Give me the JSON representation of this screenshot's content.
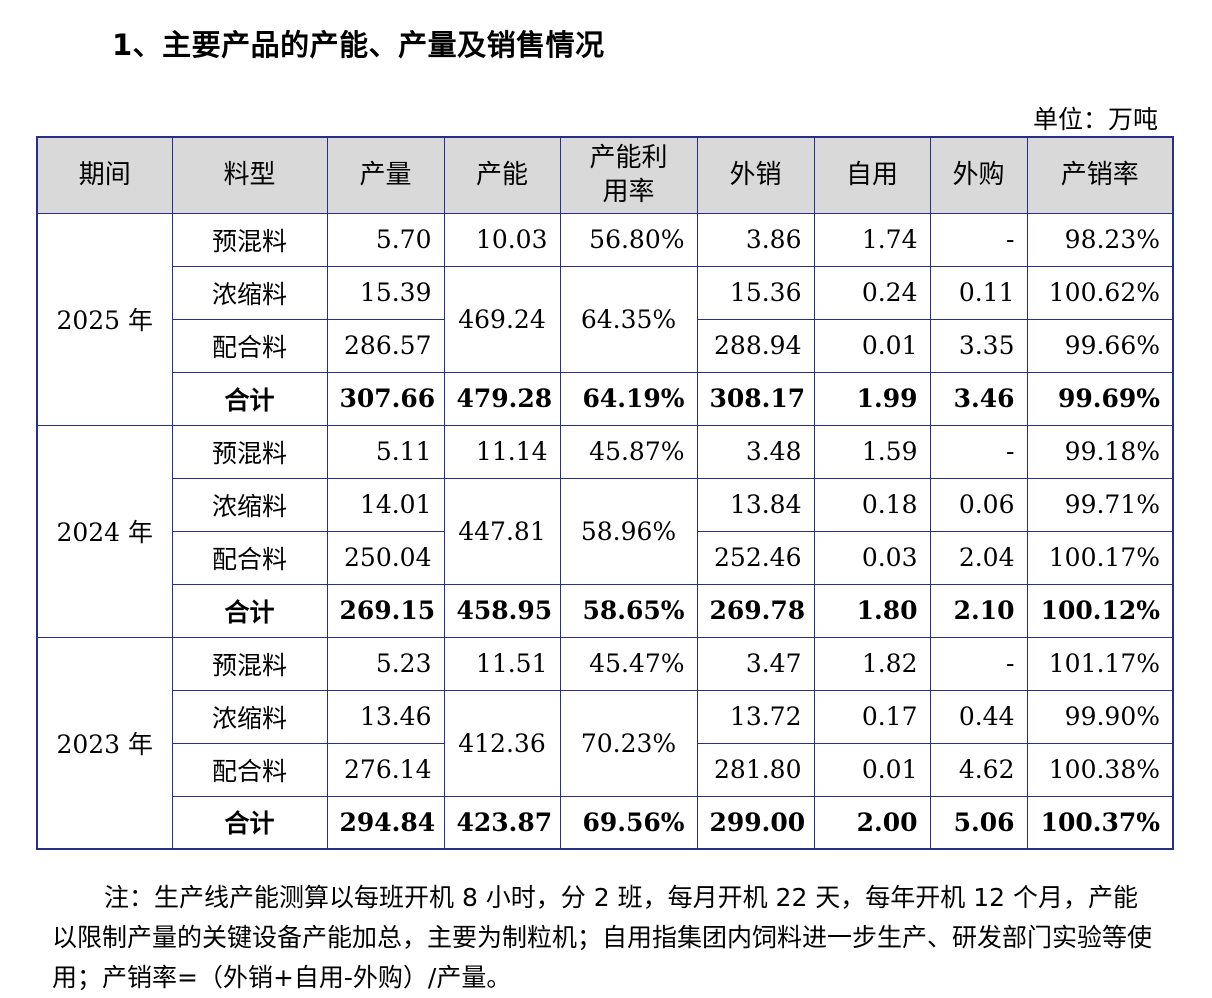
{
  "title": "1、主要产品的产能、产量及销售情况",
  "unit": "单位：万吨",
  "headers": [
    "期间",
    "料型",
    "产量",
    "产能",
    "产能利用率",
    "外销",
    "自用",
    "外购",
    "产销率"
  ],
  "groups": [
    {
      "year": "2025 年",
      "rows": [
        {
          "type": "预混料",
          "output": "5.70",
          "capacity": "10.03",
          "util": "56.80%",
          "sales": "3.86",
          "self": "1.74",
          "purchase": "-",
          "rate": "98.23%"
        },
        {
          "type": "浓缩料",
          "output": "15.39",
          "capacity": "469.24",
          "util": "64.35%",
          "sales": "15.36",
          "self": "0.24",
          "purchase": "0.11",
          "rate": "100.62%"
        },
        {
          "type": "配合料",
          "output": "286.57",
          "sales": "288.94",
          "self": "0.01",
          "purchase": "3.35",
          "rate": "99.66%"
        }
      ],
      "total": {
        "type": "合计",
        "output": "307.66",
        "capacity": "479.28",
        "util": "64.19%",
        "sales": "308.17",
        "self": "1.99",
        "purchase": "3.46",
        "rate": "99.69%"
      }
    },
    {
      "year": "2024 年",
      "rows": [
        {
          "type": "预混料",
          "output": "5.11",
          "capacity": "11.14",
          "util": "45.87%",
          "sales": "3.48",
          "self": "1.59",
          "purchase": "-",
          "rate": "99.18%"
        },
        {
          "type": "浓缩料",
          "output": "14.01",
          "capacity": "447.81",
          "util": "58.96%",
          "sales": "13.84",
          "self": "0.18",
          "purchase": "0.06",
          "rate": "99.71%"
        },
        {
          "type": "配合料",
          "output": "250.04",
          "sales": "252.46",
          "self": "0.03",
          "purchase": "2.04",
          "rate": "100.17%"
        }
      ],
      "total": {
        "type": "合计",
        "output": "269.15",
        "capacity": "458.95",
        "util": "58.65%",
        "sales": "269.78",
        "self": "1.80",
        "purchase": "2.10",
        "rate": "100.12%"
      }
    },
    {
      "year": "2023 年",
      "rows": [
        {
          "type": "预混料",
          "output": "5.23",
          "capacity": "11.51",
          "util": "45.47%",
          "sales": "3.47",
          "self": "1.82",
          "purchase": "-",
          "rate": "101.17%"
        },
        {
          "type": "浓缩料",
          "output": "13.46",
          "capacity": "412.36",
          "util": "70.23%",
          "sales": "13.72",
          "self": "0.17",
          "purchase": "0.44",
          "rate": "99.90%"
        },
        {
          "type": "配合料",
          "output": "276.14",
          "sales": "281.80",
          "self": "0.01",
          "purchase": "4.62",
          "rate": "100.38%"
        }
      ],
      "total": {
        "type": "合计",
        "output": "294.84",
        "capacity": "423.87",
        "util": "69.56%",
        "sales": "299.00",
        "self": "2.00",
        "purchase": "5.06",
        "rate": "100.37%"
      }
    }
  ],
  "note": "注：生产线产能测算以每班开机 8 小时，分 2 班，每月开机 22 天，每年开机 12 个月，产能以限制产量的关键设备产能加总，主要为制粒机；自用指集团内饲料进一步生产、研发部门实验等使用；产销率=（外销+自用-外购）/产量。"
}
